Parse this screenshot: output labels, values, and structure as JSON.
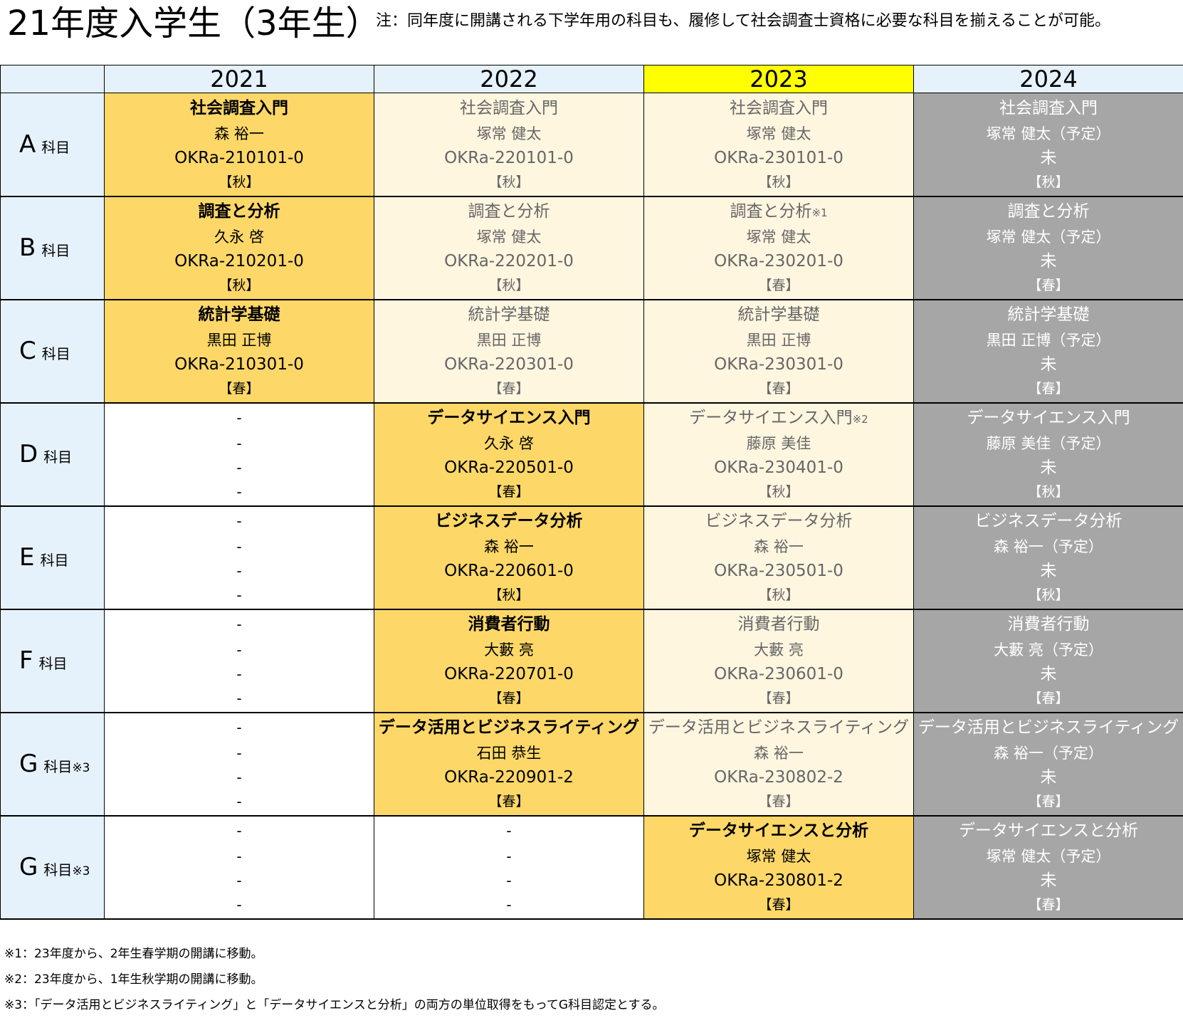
{
  "title": "21年度入学生（3年生）",
  "note": "注：同年度に開講される下学年用の科目も、履修して社会調査士資格に必要な科目を揃えることが可能。",
  "years": [
    "2021",
    "2022",
    "2023",
    "2024"
  ],
  "highlight_year": "2023",
  "rows": [
    {
      "letter": "A",
      "sub": "科目",
      "mark": "",
      "cells": [
        {
          "state": "taken",
          "course": "社会調査入門",
          "mark": "",
          "instructor": "森 裕一",
          "code": "OKRa-210101-0",
          "term": "【秋】"
        },
        {
          "state": "other",
          "course": "社会調査入門",
          "mark": "",
          "instructor": "塚常 健太",
          "code": "OKRa-220101-0",
          "term": "【秋】"
        },
        {
          "state": "other",
          "course": "社会調査入門",
          "mark": "",
          "instructor": "塚常 健太",
          "code": "OKRa-230101-0",
          "term": "【秋】"
        },
        {
          "state": "plan",
          "course": "社会調査入門",
          "mark": "",
          "instructor": "塚常 健太（予定）",
          "code": "未",
          "term": "【秋】"
        }
      ]
    },
    {
      "letter": "B",
      "sub": "科目",
      "mark": "",
      "cells": [
        {
          "state": "taken",
          "course": "調査と分析",
          "mark": "",
          "instructor": "久永 啓",
          "code": "OKRa-210201-0",
          "term": "【秋】"
        },
        {
          "state": "other",
          "course": "調査と分析",
          "mark": "",
          "instructor": "塚常 健太",
          "code": "OKRa-220201-0",
          "term": "【秋】"
        },
        {
          "state": "other",
          "course": "調査と分析",
          "mark": "※1",
          "instructor": "塚常 健太",
          "code": "OKRa-230201-0",
          "term": "【春】"
        },
        {
          "state": "plan",
          "course": "調査と分析",
          "mark": "",
          "instructor": "塚常 健太（予定）",
          "code": "未",
          "term": "【春】"
        }
      ]
    },
    {
      "letter": "C",
      "sub": "科目",
      "mark": "",
      "cells": [
        {
          "state": "taken",
          "course": "統計学基礎",
          "mark": "",
          "instructor": "黒田 正博",
          "code": "OKRa-210301-0",
          "term": "【春】"
        },
        {
          "state": "other",
          "course": "統計学基礎",
          "mark": "",
          "instructor": "黒田 正博",
          "code": "OKRa-220301-0",
          "term": "【春】"
        },
        {
          "state": "other",
          "course": "統計学基礎",
          "mark": "",
          "instructor": "黒田 正博",
          "code": "OKRa-230301-0",
          "term": "【春】"
        },
        {
          "state": "plan",
          "course": "統計学基礎",
          "mark": "",
          "instructor": "黒田 正博（予定）",
          "code": "未",
          "term": "【春】"
        }
      ]
    },
    {
      "letter": "D",
      "sub": "科目",
      "mark": "",
      "cells": [
        {
          "state": "empty",
          "course": "-",
          "mark": "",
          "instructor": "-",
          "code": "-",
          "term": "-"
        },
        {
          "state": "taken",
          "course": "データサイエンス入門",
          "mark": "",
          "instructor": "久永 啓",
          "code": "OKRa-220501-0",
          "term": "【春】"
        },
        {
          "state": "other",
          "course": "データサイエンス入門",
          "mark": "※2",
          "instructor": "藤原 美佳",
          "code": "OKRa-230401-0",
          "term": "【秋】"
        },
        {
          "state": "plan",
          "course": "データサイエンス入門",
          "mark": "",
          "instructor": "藤原 美佳（予定）",
          "code": "未",
          "term": "【秋】"
        }
      ]
    },
    {
      "letter": "E",
      "sub": "科目",
      "mark": "",
      "cells": [
        {
          "state": "empty",
          "course": "-",
          "mark": "",
          "instructor": "-",
          "code": "-",
          "term": "-"
        },
        {
          "state": "taken",
          "course": "ビジネスデータ分析",
          "mark": "",
          "instructor": "森 裕一",
          "code": "OKRa-220601-0",
          "term": "【秋】"
        },
        {
          "state": "other",
          "course": "ビジネスデータ分析",
          "mark": "",
          "instructor": "森 裕一",
          "code": "OKRa-230501-0",
          "term": "【秋】"
        },
        {
          "state": "plan",
          "course": "ビジネスデータ分析",
          "mark": "",
          "instructor": "森 裕一（予定）",
          "code": "未",
          "term": "【秋】"
        }
      ]
    },
    {
      "letter": "F",
      "sub": "科目",
      "mark": "",
      "cells": [
        {
          "state": "empty",
          "course": "-",
          "mark": "",
          "instructor": "-",
          "code": "-",
          "term": "-"
        },
        {
          "state": "taken",
          "course": "消費者行動",
          "mark": "",
          "instructor": "大藪 亮",
          "code": "OKRa-220701-0",
          "term": "【春】"
        },
        {
          "state": "other",
          "course": "消費者行動",
          "mark": "",
          "instructor": "大藪 亮",
          "code": "OKRa-230601-0",
          "term": "【春】"
        },
        {
          "state": "plan",
          "course": "消費者行動",
          "mark": "",
          "instructor": "大藪 亮（予定）",
          "code": "未",
          "term": "【春】"
        }
      ]
    },
    {
      "letter": "G",
      "sub": "科目",
      "mark": "※3",
      "cells": [
        {
          "state": "empty",
          "course": "-",
          "mark": "",
          "instructor": "-",
          "code": "-",
          "term": "-"
        },
        {
          "state": "taken",
          "course": "データ活用とビジネスライティング",
          "mark": "",
          "instructor": "石田 恭生",
          "code": "OKRa-220901-2",
          "term": "【春】"
        },
        {
          "state": "other",
          "course": "データ活用とビジネスライティング",
          "mark": "",
          "instructor": "森 裕一",
          "code": "OKRa-230802-2",
          "term": "【春】"
        },
        {
          "state": "plan",
          "course": "データ活用とビジネスライティング",
          "mark": "",
          "instructor": "森 裕一（予定）",
          "code": "未",
          "term": "【春】"
        }
      ]
    },
    {
      "letter": "G",
      "sub": "科目",
      "mark": "※3",
      "cells": [
        {
          "state": "empty",
          "course": "-",
          "mark": "",
          "instructor": "-",
          "code": "-",
          "term": "-"
        },
        {
          "state": "empty",
          "course": "-",
          "mark": "",
          "instructor": "-",
          "code": "-",
          "term": "-"
        },
        {
          "state": "taken",
          "course": "データサイエンスと分析",
          "mark": "",
          "instructor": "塚常 健太",
          "code": "OKRa-230801-2",
          "term": "【春】"
        },
        {
          "state": "plan",
          "course": "データサイエンスと分析",
          "mark": "",
          "instructor": "塚常 健太（予定）",
          "code": "未",
          "term": "【春】"
        }
      ]
    }
  ],
  "footnotes": [
    "※1：23年度から、2年生春学期の開講に移動。",
    "※2：23年度から、1年生秋学期の開講に移動。",
    "※3：「データ活用とビジネスライティング」と「データサイエンスと分析」の両方の単位取得をもってG科目認定とする。"
  ],
  "colors": {
    "taken": "#fdd868",
    "other": "#fff6e0",
    "plan": "#a6a6a6",
    "header": "#e6f2fb",
    "current_year": "#ffff00"
  }
}
